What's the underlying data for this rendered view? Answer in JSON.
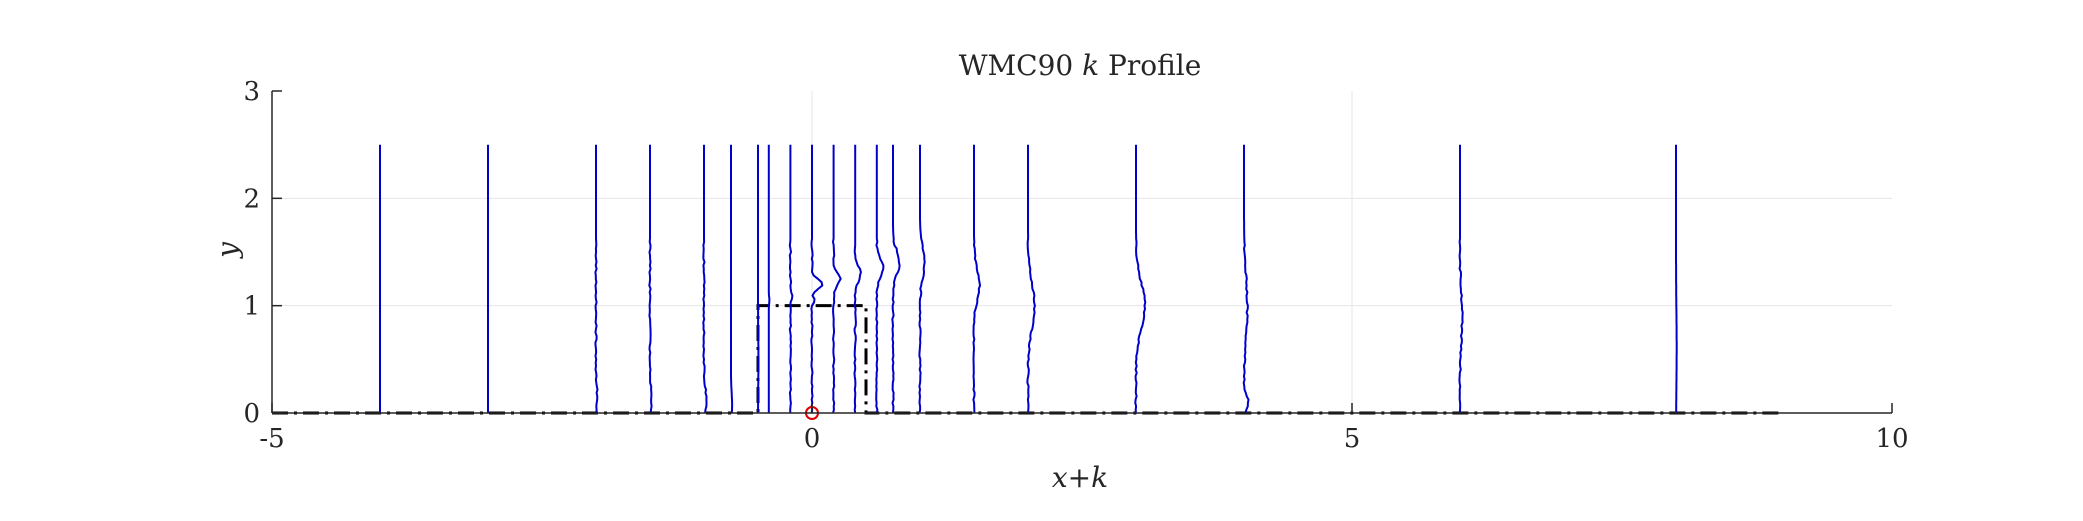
{
  "chart_data": {
    "type": "line",
    "title": "WMC90 k Profile",
    "title_parts": {
      "prefix": "WMC90",
      "var": "k",
      "suffix": "Profile"
    },
    "xlabel": "x+k",
    "ylabel": "y",
    "xlim": [
      -5,
      10
    ],
    "ylim": [
      0,
      3
    ],
    "xticks": [
      -5,
      0,
      5,
      10
    ],
    "yticks": [
      0,
      1,
      2,
      3
    ],
    "grid": true,
    "legend": "none",
    "colors": {
      "profile": "#0000cc",
      "geometry": "#000000",
      "origin_marker": "#e00000",
      "grid": "#e6e6e6",
      "axis": "#262626"
    },
    "profile_stations_x": [
      -4,
      -3,
      -2,
      -1.5,
      -1,
      -0.75,
      -0.5,
      -0.4,
      -0.2,
      0,
      0.2,
      0.4,
      0.6,
      0.75,
      1,
      1.5,
      2,
      3,
      4,
      6,
      8
    ],
    "profiles": [
      {
        "x_station": -4,
        "y_top": 2.5,
        "bumps": []
      },
      {
        "x_station": -3,
        "y_top": 2.5,
        "bumps": []
      },
      {
        "x_station": -2,
        "y_top": 2.5,
        "bumps": [
          [
            0.15,
            0.06,
            0.12
          ]
        ]
      },
      {
        "x_station": -1.5,
        "y_top": 2.5,
        "bumps": [
          [
            0.1,
            0.08,
            0.14
          ]
        ]
      },
      {
        "x_station": -1,
        "y_top": 2.5,
        "bumps": [
          [
            0.1,
            0.1,
            0.2
          ]
        ]
      },
      {
        "x_station": -0.75,
        "y_top": 2.5,
        "bumps": [
          [
            0.08,
            0.05,
            0.15
          ]
        ]
      },
      {
        "x_station": -0.5,
        "y_top": 2.5,
        "bumps": [
          [
            0.5,
            0.02,
            0.3
          ]
        ]
      },
      {
        "x_station": -0.4,
        "y_top": 2.5,
        "bumps": [
          [
            1.05,
            0.03,
            0.04
          ]
        ]
      },
      {
        "x_station": -0.2,
        "y_top": 2.5,
        "bumps": [
          [
            1.1,
            0.08,
            0.05
          ]
        ]
      },
      {
        "x_station": 0,
        "y_top": 2.5,
        "bumps": [
          [
            1.2,
            0.5,
            0.06
          ],
          [
            1.05,
            0.1,
            0.04
          ]
        ]
      },
      {
        "x_station": 0.2,
        "y_top": 2.5,
        "bumps": [
          [
            1.25,
            0.3,
            0.08
          ]
        ]
      },
      {
        "x_station": 0.4,
        "y_top": 2.5,
        "bumps": [
          [
            1.3,
            0.25,
            0.1
          ]
        ]
      },
      {
        "x_station": 0.6,
        "y_top": 2.5,
        "bumps": [
          [
            1.35,
            0.3,
            0.12
          ]
        ]
      },
      {
        "x_station": 0.75,
        "y_top": 2.5,
        "bumps": [
          [
            1.4,
            0.3,
            0.15
          ]
        ]
      },
      {
        "x_station": 1,
        "y_top": 2.5,
        "bumps": [
          [
            1.4,
            0.2,
            0.2
          ]
        ]
      },
      {
        "x_station": 1.5,
        "y_top": 2.5,
        "bumps": [
          [
            1.2,
            0.25,
            0.2
          ]
        ]
      },
      {
        "x_station": 2,
        "y_top": 2.5,
        "bumps": [
          [
            1.0,
            0.3,
            0.3
          ]
        ]
      },
      {
        "x_station": 3,
        "y_top": 2.5,
        "bumps": [
          [
            1.0,
            0.4,
            0.3
          ]
        ]
      },
      {
        "x_station": 4,
        "y_top": 2.5,
        "bumps": [
          [
            1.0,
            0.15,
            0.4
          ],
          [
            0.1,
            0.2,
            0.08
          ]
        ]
      },
      {
        "x_station": 6,
        "y_top": 2.5,
        "bumps": [
          [
            0.9,
            0.1,
            0.3
          ]
        ]
      },
      {
        "x_station": 8,
        "y_top": 2.5,
        "bumps": [
          [
            0.6,
            0.03,
            0.5
          ]
        ]
      }
    ],
    "geometry_outline": [
      [
        -5,
        0
      ],
      [
        -0.5,
        0
      ],
      [
        -0.5,
        1
      ],
      [
        0.5,
        1
      ],
      [
        0.5,
        0
      ],
      [
        9,
        0
      ]
    ],
    "origin_marker": [
      0,
      0
    ]
  }
}
